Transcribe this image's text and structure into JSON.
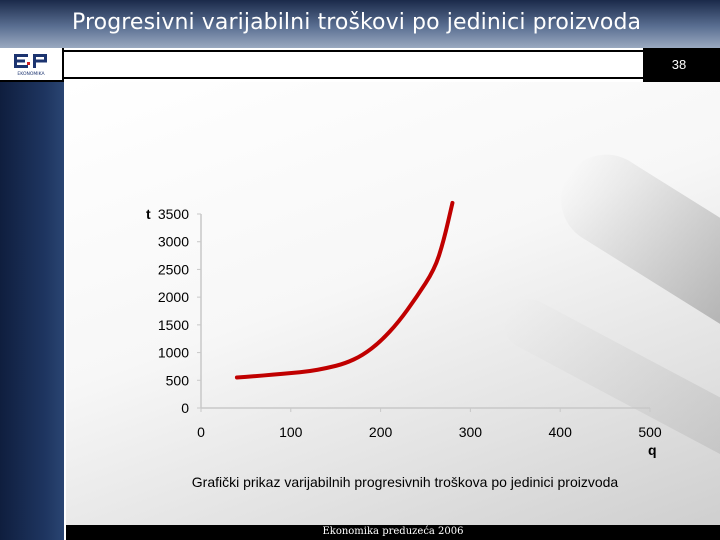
{
  "slide": {
    "title": "Progresivni varijabilni troškovi po jedinici proizvoda",
    "page_number": "38",
    "caption": "Grafički prikaz varijabilnih progresivnih troškova po jedinici proizvoda",
    "footer": "Ekonomika preduzeća 2006",
    "logo_text": "EKONOMIKA"
  },
  "colors": {
    "curve": "#c00000",
    "axis": "#c8c8c8",
    "title_bar": "#4a5f84"
  },
  "chart_data": {
    "type": "line",
    "title": "",
    "xlabel": "q",
    "ylabel": "t",
    "xlim": [
      0,
      500
    ],
    "ylim": [
      0,
      3500
    ],
    "x_ticks": [
      "0",
      "100",
      "200",
      "300",
      "400",
      "500"
    ],
    "y_ticks": [
      "0",
      "500",
      "1000",
      "1500",
      "2000",
      "2500",
      "3000",
      "3500"
    ],
    "grid": false,
    "series": [
      {
        "x": [
          40,
          60,
          80,
          100,
          120,
          140,
          160,
          180,
          200,
          220,
          240,
          260,
          270,
          280
        ],
        "values": [
          550,
          575,
          600,
          630,
          660,
          720,
          800,
          950,
          1200,
          1550,
          2000,
          2500,
          3000,
          3700
        ]
      }
    ]
  }
}
